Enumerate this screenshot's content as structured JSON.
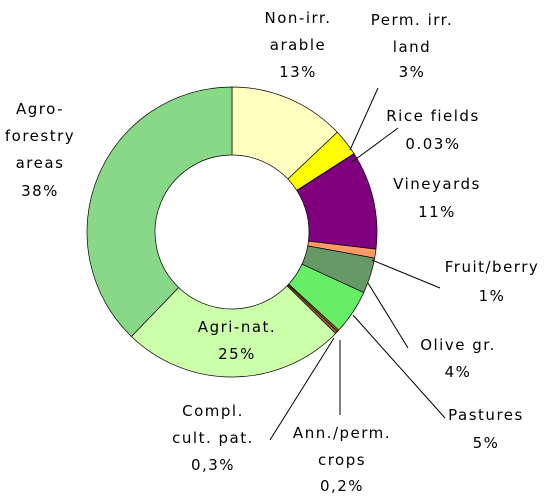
{
  "chart_data": {
    "type": "donut",
    "categories": [
      "Non-irr.\narable",
      "Perm. irr.\nland",
      "Rice fields",
      "Vineyards",
      "Fruit/berry",
      "Olive gr.",
      "Pastures",
      "Ann./perm.\ncrops",
      "Compl.\ncult. pat.",
      "Agri-nat.",
      "Agro-\nforestry\nareas"
    ],
    "values": [
      13,
      3,
      0.03,
      11,
      1,
      4,
      5,
      0.2,
      0.3,
      25,
      38
    ],
    "value_labels": [
      "13%",
      "3%",
      "0.03%",
      "11%",
      "1%",
      "4%",
      "5%",
      "0,2%",
      "0,3%",
      "25%",
      "38%"
    ],
    "colors": [
      "#ffffc0",
      "#ffff00",
      "#404040",
      "#800080",
      "#ff9966",
      "#669966",
      "#66ee66",
      "#cc6600",
      "#996633",
      "#ccffaa",
      "#88d888"
    ]
  }
}
